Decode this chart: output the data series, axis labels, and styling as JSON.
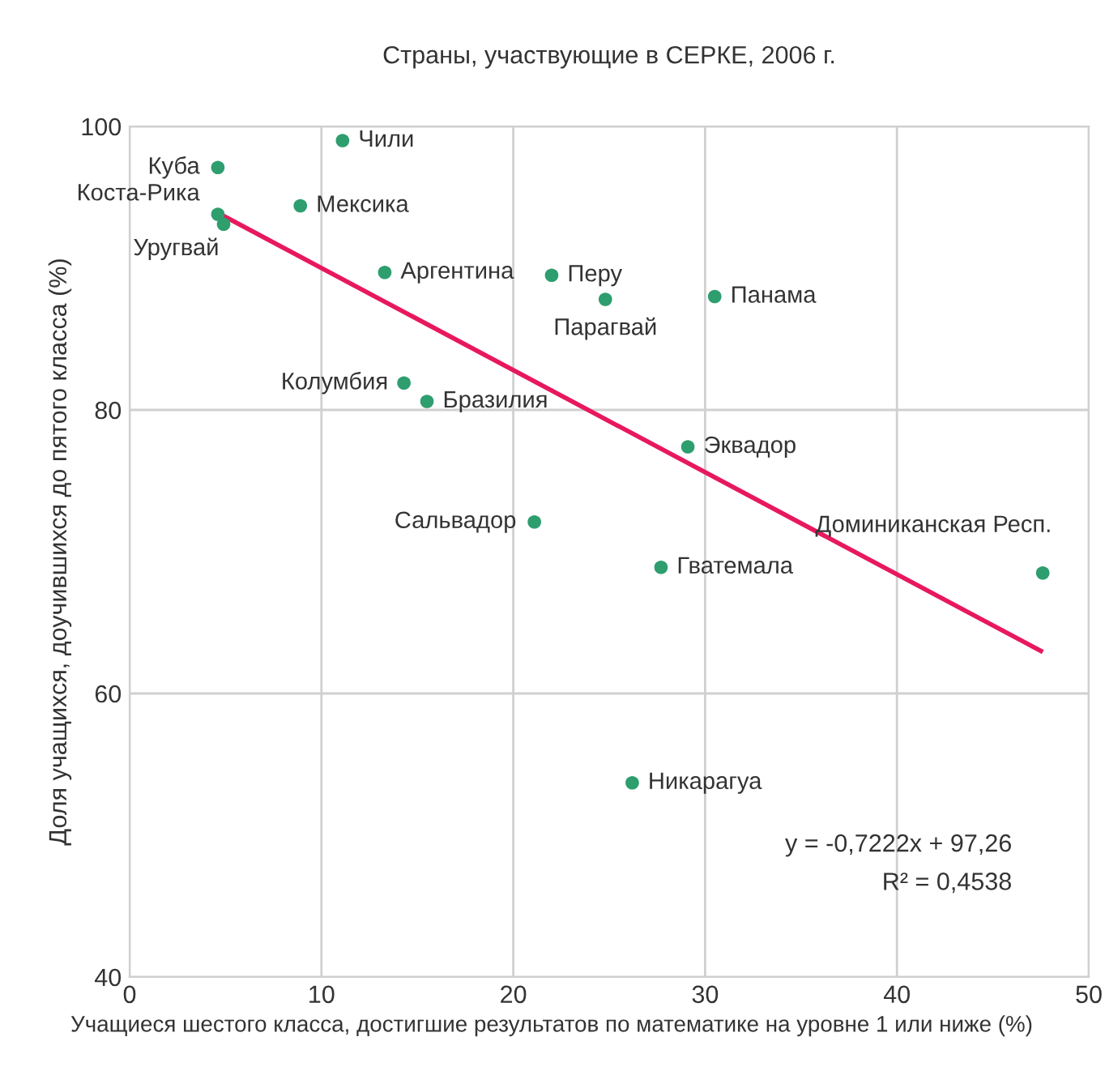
{
  "chart_data": {
    "type": "scatter",
    "title": "Страны, участвующие в СЕРКЕ, 2006 г.",
    "xlabel": "Учащиеся шестого класса, достигшие результатов по математике на уровне 1 или ниже (%)",
    "ylabel": "Доля учащихся, доучившихся до пятого класса (%)",
    "xlim": [
      0,
      50
    ],
    "ylim": [
      40,
      100
    ],
    "xticks": [
      0,
      10,
      20,
      30,
      40,
      50
    ],
    "yticks": [
      40,
      60,
      80,
      100
    ],
    "grid": true,
    "series": [
      {
        "marker": "circle",
        "color": "#2e9e6e",
        "x": [
          4.6,
          4.6,
          4.9,
          11.1,
          8.9,
          13.3,
          22.0,
          24.8,
          30.5,
          14.3,
          15.5,
          29.1,
          21.1,
          27.7,
          47.6,
          26.2
        ],
        "values": [
          97.1,
          93.8,
          93.1,
          99.0,
          94.4,
          89.7,
          89.5,
          87.8,
          88.0,
          81.9,
          80.6,
          77.4,
          72.1,
          68.9,
          68.5,
          53.7
        ]
      },
      {
        "type": "line",
        "color": "#e8185e",
        "x": [
          4.6,
          47.5
        ],
        "values": [
          93.9,
          63.0
        ]
      }
    ],
    "annotations": [
      {
        "text": "Куба",
        "x": 4.6,
        "y": 97.1
      },
      {
        "text": "Коста-Рика",
        "x": 4.6,
        "y": 93.8
      },
      {
        "text": "Уругвай",
        "x": 4.9,
        "y": 93.1
      },
      {
        "text": "Чили",
        "x": 11.1,
        "y": 99.0
      },
      {
        "text": "Мексика",
        "x": 8.9,
        "y": 94.4
      },
      {
        "text": "Аргентина",
        "x": 13.3,
        "y": 89.7
      },
      {
        "text": "Перу",
        "x": 22.0,
        "y": 89.5
      },
      {
        "text": "Парагвай",
        "x": 24.8,
        "y": 87.8
      },
      {
        "text": "Панама",
        "x": 30.5,
        "y": 88.0
      },
      {
        "text": "Колумбия",
        "x": 14.3,
        "y": 81.9
      },
      {
        "text": "Бразилия",
        "x": 15.5,
        "y": 80.6
      },
      {
        "text": "Эквадор",
        "x": 29.1,
        "y": 77.4
      },
      {
        "text": "Сальвадор",
        "x": 21.1,
        "y": 72.1
      },
      {
        "text": "Гватемала",
        "x": 27.7,
        "y": 68.9
      },
      {
        "text": "Доминиканская Респ.",
        "x": 47.6,
        "y": 68.5
      },
      {
        "text": "Никарагуа",
        "x": 26.2,
        "y": 53.7
      },
      "y = -0,7222x + 97,26",
      "R² = 0,4538"
    ]
  }
}
